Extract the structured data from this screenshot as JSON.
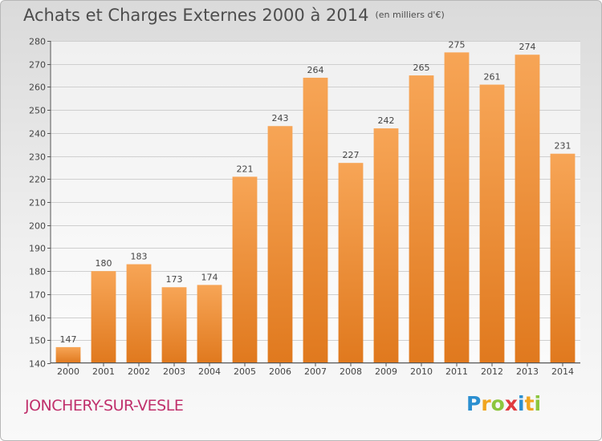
{
  "title": "Achats et Charges Externes 2000 à 2014",
  "subtitle": "(en milliers d'€)",
  "commune": "JONCHERY-SUR-VESLE",
  "logo": {
    "letters": [
      "P",
      "r",
      "o",
      "x",
      "i",
      "t",
      "i"
    ],
    "colors": [
      "#2b8fd0",
      "#f0a51f",
      "#8cc63e",
      "#e03a3e",
      "#2b8fd0",
      "#f0a51f",
      "#8cc63e"
    ]
  },
  "colors": {
    "bar_top": "#f7a556",
    "bar_bottom": "#e0791e",
    "grid": "#cfcfcf",
    "text": "#444444"
  },
  "chart_data": {
    "type": "bar",
    "categories": [
      "2000",
      "2001",
      "2002",
      "2003",
      "2004",
      "2005",
      "2006",
      "2007",
      "2008",
      "2009",
      "2010",
      "2011",
      "2012",
      "2013",
      "2014"
    ],
    "values": [
      147,
      180,
      183,
      173,
      174,
      221,
      243,
      264,
      227,
      242,
      265,
      275,
      261,
      274,
      231
    ],
    "ylim": [
      140,
      280
    ],
    "yticks": [
      140,
      150,
      160,
      170,
      180,
      190,
      200,
      210,
      220,
      230,
      240,
      250,
      260,
      270,
      280
    ],
    "grid": true,
    "data_labels": true
  }
}
